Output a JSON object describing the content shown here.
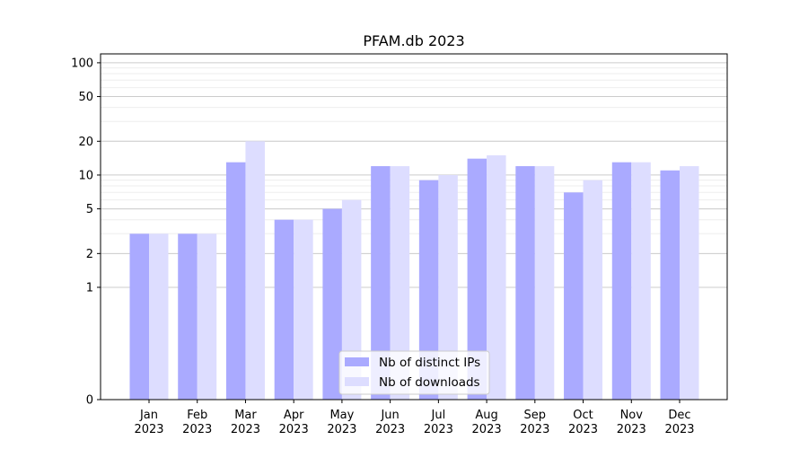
{
  "chart_data": {
    "type": "bar",
    "title": "PFAM.db 2023",
    "xlabel": "",
    "ylabel": "",
    "y_scale": "symlog",
    "ylim": [
      0,
      120
    ],
    "y_ticks": [
      0,
      1,
      2,
      5,
      10,
      20,
      50,
      100
    ],
    "categories": [
      {
        "month": "Jan",
        "year": "2023"
      },
      {
        "month": "Feb",
        "year": "2023"
      },
      {
        "month": "Mar",
        "year": "2023"
      },
      {
        "month": "Apr",
        "year": "2023"
      },
      {
        "month": "May",
        "year": "2023"
      },
      {
        "month": "Jun",
        "year": "2023"
      },
      {
        "month": "Jul",
        "year": "2023"
      },
      {
        "month": "Aug",
        "year": "2023"
      },
      {
        "month": "Sep",
        "year": "2023"
      },
      {
        "month": "Oct",
        "year": "2023"
      },
      {
        "month": "Nov",
        "year": "2023"
      },
      {
        "month": "Dec",
        "year": "2023"
      }
    ],
    "series": [
      {
        "name": "Nb of distinct IPs",
        "color": "#aaaaff",
        "values": [
          3,
          3,
          13,
          4,
          5,
          12,
          9,
          14,
          12,
          7,
          13,
          11
        ]
      },
      {
        "name": "Nb of downloads",
        "color": "#ddddff",
        "values": [
          3,
          3,
          20,
          4,
          6,
          12,
          10,
          15,
          12,
          9,
          13,
          12
        ]
      }
    ],
    "grid": true,
    "legend_position": "bottom-center"
  }
}
